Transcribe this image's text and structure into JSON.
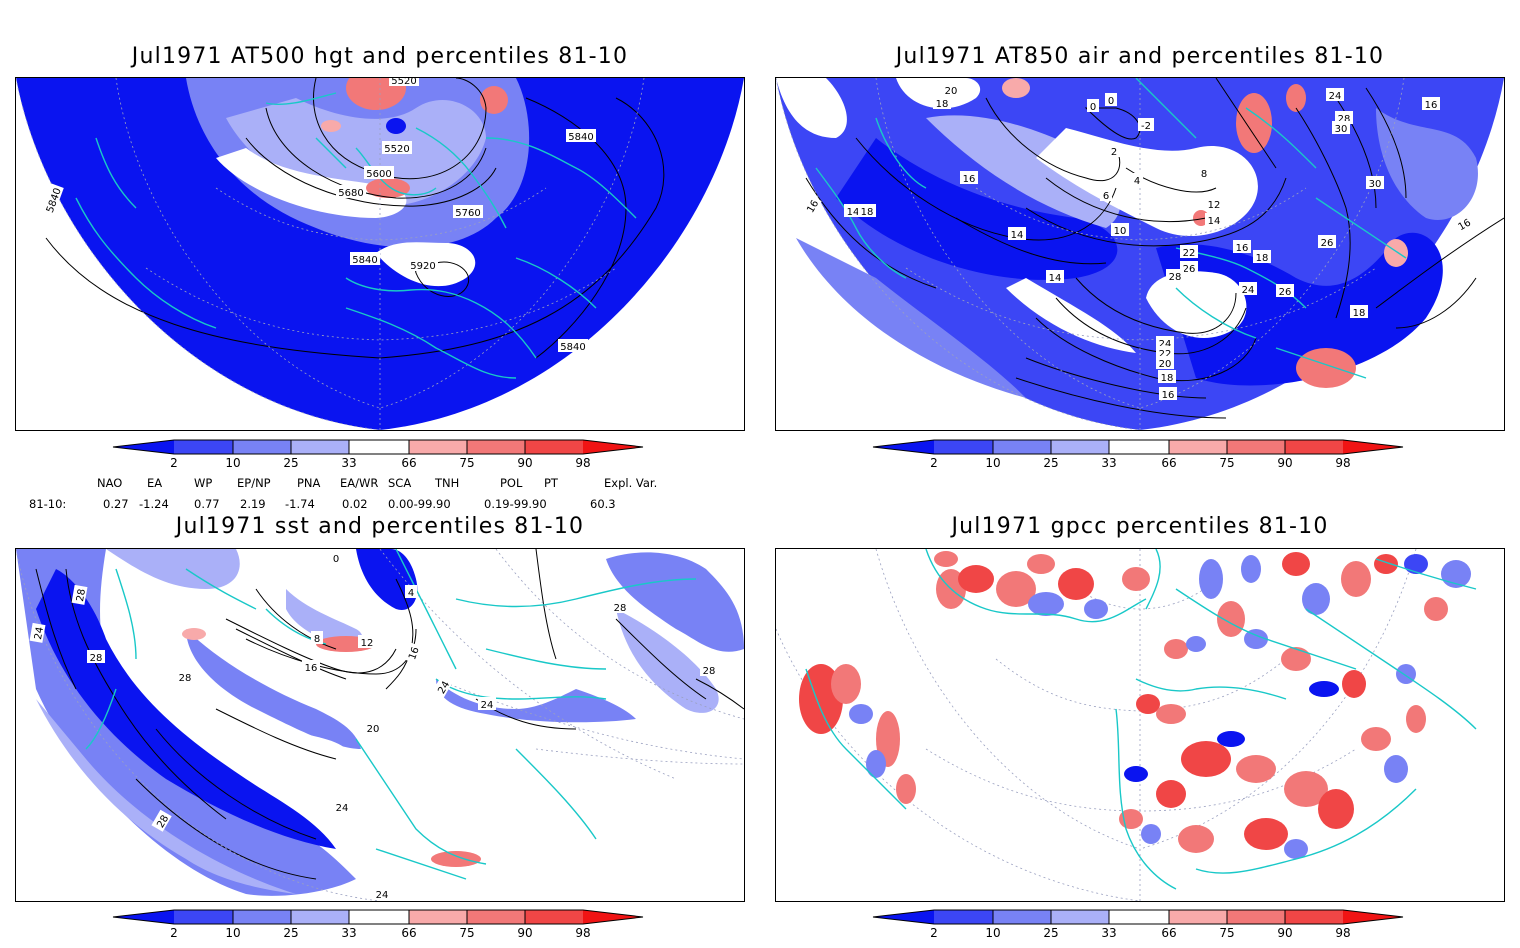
{
  "colors": {
    "bg": "#ffffff",
    "frame": "#000000",
    "coast": "#19c8c8",
    "neg_strong": "#0a14f0",
    "neg_mid": "#3c46f5",
    "neg_light": "#7882f5",
    "neg_pale": "#aab0f8",
    "pos_pale": "#f8aaaa",
    "pos_light": "#f27878",
    "pos_mid": "#f04646",
    "pos_strong": "#f01414"
  },
  "colorbar": {
    "ticks": [
      "2",
      "10",
      "25",
      "33",
      "66",
      "75",
      "90",
      "98"
    ]
  },
  "panels": [
    {
      "id": "at500",
      "title": "Jul1971 AT500 hgt and percentiles 81-10",
      "contour_labels": [
        "5520",
        "5600",
        "5680",
        "5760",
        "5840",
        "5840",
        "5840",
        "5840",
        "5920",
        "5520"
      ]
    },
    {
      "id": "at850",
      "title": "Jul1971 AT850 air and percentiles 81-10",
      "contour_labels": [
        "20",
        "18",
        "14",
        "16",
        "0",
        "0",
        "-2",
        "2",
        "4",
        "6",
        "8",
        "10",
        "12",
        "14",
        "16",
        "18",
        "14",
        "14",
        "16",
        "18",
        "22",
        "26",
        "28",
        "24",
        "26",
        "24",
        "22",
        "20",
        "18",
        "16",
        "24",
        "28",
        "30",
        "30",
        "26",
        "18",
        "16",
        "16",
        "14",
        "16"
      ]
    },
    {
      "id": "sst",
      "title": "Jul1971 sst and percentiles 81-10",
      "contour_labels": [
        "24",
        "28",
        "28",
        "28",
        "20",
        "24",
        "16",
        "12",
        "8",
        "4",
        "0",
        "16",
        "24",
        "24",
        "28",
        "28",
        "24",
        "28"
      ]
    },
    {
      "id": "gpcc",
      "title": "Jul1971 gpcc percentiles 81-10"
    }
  ],
  "indices": {
    "headers": [
      "NAO",
      "EA",
      "WP",
      "EP/NP",
      "PNA",
      "EA/WR",
      "SCA",
      "TNH",
      "POL",
      "PT",
      "Expl. Var."
    ],
    "row_label": "81-10:",
    "values": [
      "0.27",
      "-1.24",
      "0.77",
      "2.19",
      "-1.74",
      "0.02",
      "0.00-99.90",
      "0.19-99.90",
      "60.3"
    ]
  }
}
